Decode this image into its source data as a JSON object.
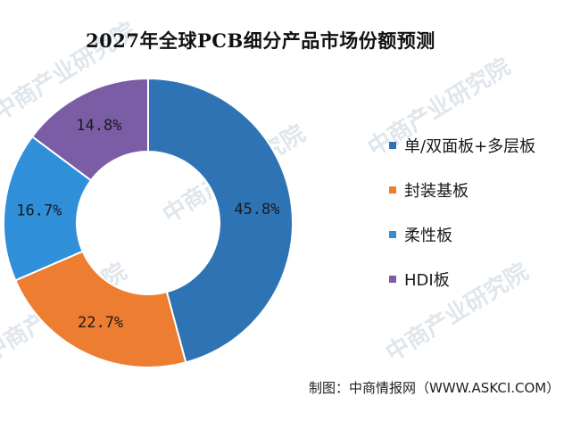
{
  "chart_data": {
    "type": "donut",
    "title": "2027年全球PCB细分产品市场份额预测",
    "categories": [
      "单/双面板+多层板",
      "封装基板",
      "柔性板",
      "HDI板"
    ],
    "values": [
      45.8,
      22.7,
      16.7,
      14.8
    ],
    "value_labels": [
      "45.8%",
      "22.7%",
      "16.7%",
      "14.8%"
    ],
    "colors": [
      "#2e74b5",
      "#ed7d31",
      "#2f8fd8",
      "#7b5da6"
    ],
    "legend_placement": "right"
  },
  "source_text": "制图：中商情报网（WWW.ASKCI.COM）",
  "watermark_text": "中商产业研究院"
}
